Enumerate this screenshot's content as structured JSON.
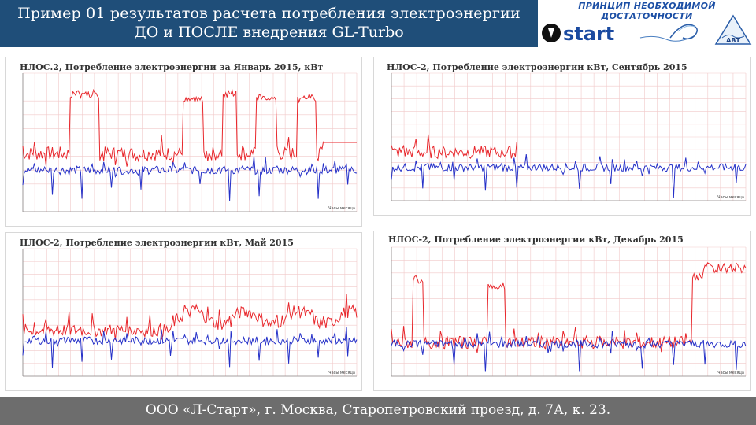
{
  "header": {
    "line1": "Пример 01 результатов расчета потребления электроэнергии",
    "line2": "ДО и ПОСЛЕ внедрения GL-Turbo"
  },
  "logos": {
    "motto": "ПРИНЦИП НЕОБХОДИМОЙ ДОСТАТОЧНОСТИ",
    "start": "start",
    "avt": "АВТ"
  },
  "colors": {
    "header_bg": "#1f4e79",
    "before_series": "#e8262b",
    "after_series": "#2530c8",
    "footer_bg": "#6d6d6d"
  },
  "panels": [
    {
      "title": "НЛОС.2, Потребление электроэнергии за Январь 2015, кВт",
      "xunit": "Часы месяца"
    },
    {
      "title": "НЛОС-2, Потребление электроэнергии кВт,  Сентябрь 2015",
      "xunit": "Часы месяца"
    },
    {
      "title": "НЛОС-2, Потребление электроэнергии кВт,  Май 2015",
      "xunit": "Часы месяца"
    },
    {
      "title": "НЛОС-2, Потребление электроэнергии кВт,  Декабрь 2015",
      "xunit": "Часы месяца"
    }
  ],
  "footer": {
    "text": "ООО «Л-Старт», г. Москва, Старопетровский проезд, д. 7А, к. 23."
  }
}
